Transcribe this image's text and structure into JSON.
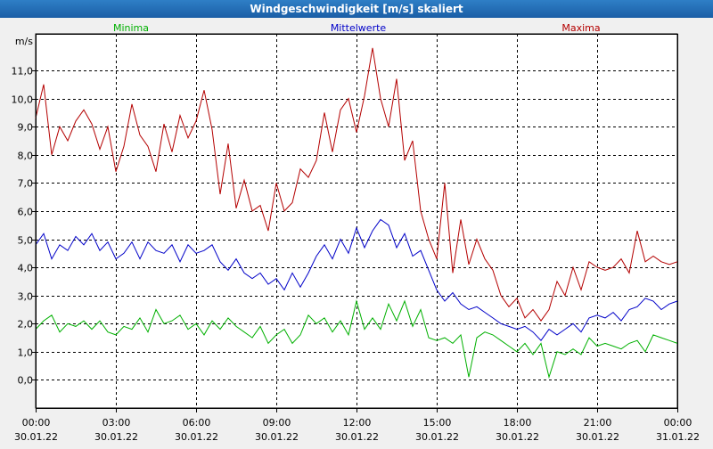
{
  "window": {
    "title": "Windgeschwindigkeit [m/s] skaliert"
  },
  "chart_data": {
    "type": "line",
    "title": "Windgeschwindigkeit [m/s] skaliert",
    "ylabel": "m/s",
    "ylim": [
      -1,
      12.3
    ],
    "xlim": [
      0,
      24
    ],
    "yticks": [
      0,
      1,
      2,
      3,
      4,
      5,
      6,
      7,
      8,
      9,
      10,
      11
    ],
    "ytick_labels": [
      "0,0",
      "1,0",
      "2,0",
      "3,0",
      "4,0",
      "5,0",
      "6,0",
      "7,0",
      "8,0",
      "9,0",
      "10,0",
      "11,0"
    ],
    "xticks": [
      {
        "x": 0,
        "time": "00:00",
        "date": "30.01.22"
      },
      {
        "x": 3,
        "time": "03:00",
        "date": "30.01.22"
      },
      {
        "x": 6,
        "time": "06:00",
        "date": "30.01.22"
      },
      {
        "x": 9,
        "time": "09:00",
        "date": "30.01.22"
      },
      {
        "x": 12,
        "time": "12:00",
        "date": "30.01.22"
      },
      {
        "x": 15,
        "time": "15:00",
        "date": "30.01.22"
      },
      {
        "x": 18,
        "time": "18:00",
        "date": "30.01.22"
      },
      {
        "x": 21,
        "time": "21:00",
        "date": "30.01.22"
      },
      {
        "x": 24,
        "time": "00:00",
        "date": "31.01.22"
      }
    ],
    "grid": true,
    "legend_position": "top",
    "series": [
      {
        "name": "Minima",
        "color": "#00b000",
        "x": [
          0,
          0.3,
          0.6,
          0.9,
          1.2,
          1.5,
          1.8,
          2.1,
          2.4,
          2.7,
          3.0,
          3.3,
          3.6,
          3.9,
          4.2,
          4.5,
          4.8,
          5.1,
          5.4,
          5.7,
          6.0,
          6.3,
          6.6,
          6.9,
          7.2,
          7.5,
          7.8,
          8.1,
          8.4,
          8.7,
          9.0,
          9.3,
          9.6,
          9.9,
          10.2,
          10.5,
          10.8,
          11.1,
          11.4,
          11.7,
          12.0,
          12.3,
          12.6,
          12.9,
          13.2,
          13.5,
          13.8,
          14.1,
          14.4,
          14.7,
          15.0,
          15.3,
          15.6,
          15.9,
          16.2,
          16.5,
          16.8,
          17.1,
          17.4,
          17.7,
          18.0,
          18.3,
          18.6,
          18.9,
          19.2,
          19.5,
          19.8,
          20.1,
          20.4,
          20.7,
          21.0,
          21.3,
          21.6,
          21.9,
          22.2,
          22.5,
          22.8,
          23.1,
          23.4,
          23.7,
          24.0
        ],
        "values": [
          1.8,
          2.1,
          2.3,
          1.7,
          2.0,
          1.9,
          2.1,
          1.8,
          2.1,
          1.7,
          1.6,
          1.9,
          1.8,
          2.2,
          1.7,
          2.5,
          2.0,
          2.1,
          2.3,
          1.8,
          2.0,
          1.6,
          2.1,
          1.8,
          2.2,
          1.9,
          1.7,
          1.5,
          1.9,
          1.3,
          1.6,
          1.8,
          1.3,
          1.6,
          2.3,
          2.0,
          2.2,
          1.7,
          2.1,
          1.6,
          2.8,
          1.8,
          2.2,
          1.8,
          2.7,
          2.1,
          2.8,
          1.9,
          2.5,
          1.5,
          1.4,
          1.5,
          1.3,
          1.6,
          0.1,
          1.5,
          1.7,
          1.6,
          1.4,
          1.2,
          1.0,
          1.3,
          0.9,
          1.3,
          0.1,
          1.0,
          0.9,
          1.1,
          0.9,
          1.5,
          1.2,
          1.3,
          1.2,
          1.1,
          1.3,
          1.4,
          1.0,
          1.6,
          1.5,
          1.4,
          1.3
        ]
      },
      {
        "name": "Mittelwerte",
        "color": "#0000c8",
        "x": [
          0,
          0.3,
          0.6,
          0.9,
          1.2,
          1.5,
          1.8,
          2.1,
          2.4,
          2.7,
          3.0,
          3.3,
          3.6,
          3.9,
          4.2,
          4.5,
          4.8,
          5.1,
          5.4,
          5.7,
          6.0,
          6.3,
          6.6,
          6.9,
          7.2,
          7.5,
          7.8,
          8.1,
          8.4,
          8.7,
          9.0,
          9.3,
          9.6,
          9.9,
          10.2,
          10.5,
          10.8,
          11.1,
          11.4,
          11.7,
          12.0,
          12.3,
          12.6,
          12.9,
          13.2,
          13.5,
          13.8,
          14.1,
          14.4,
          14.7,
          15.0,
          15.3,
          15.6,
          15.9,
          16.2,
          16.5,
          16.8,
          17.1,
          17.4,
          17.7,
          18.0,
          18.3,
          18.6,
          18.9,
          19.2,
          19.5,
          19.8,
          20.1,
          20.4,
          20.7,
          21.0,
          21.3,
          21.6,
          21.9,
          22.2,
          22.5,
          22.8,
          23.1,
          23.4,
          23.7,
          24.0
        ],
        "values": [
          4.8,
          5.2,
          4.3,
          4.8,
          4.6,
          5.1,
          4.8,
          5.2,
          4.6,
          4.9,
          4.3,
          4.5,
          4.9,
          4.3,
          4.9,
          4.6,
          4.5,
          4.8,
          4.2,
          4.8,
          4.5,
          4.6,
          4.8,
          4.2,
          3.9,
          4.3,
          3.8,
          3.6,
          3.8,
          3.4,
          3.6,
          3.2,
          3.8,
          3.3,
          3.8,
          4.4,
          4.8,
          4.3,
          5.0,
          4.5,
          5.4,
          4.7,
          5.3,
          5.7,
          5.5,
          4.7,
          5.2,
          4.4,
          4.6,
          3.9,
          3.2,
          2.8,
          3.1,
          2.7,
          2.5,
          2.6,
          2.4,
          2.2,
          2.0,
          1.9,
          1.8,
          1.9,
          1.7,
          1.4,
          1.8,
          1.6,
          1.8,
          2.0,
          1.7,
          2.2,
          2.3,
          2.2,
          2.4,
          2.1,
          2.5,
          2.6,
          2.9,
          2.8,
          2.5,
          2.7,
          2.8
        ]
      },
      {
        "name": "Maxima",
        "color": "#b40000",
        "x": [
          0,
          0.3,
          0.6,
          0.9,
          1.2,
          1.5,
          1.8,
          2.1,
          2.4,
          2.7,
          3.0,
          3.3,
          3.6,
          3.9,
          4.2,
          4.5,
          4.8,
          5.1,
          5.4,
          5.7,
          6.0,
          6.3,
          6.6,
          6.9,
          7.2,
          7.5,
          7.8,
          8.1,
          8.4,
          8.7,
          9.0,
          9.3,
          9.6,
          9.9,
          10.2,
          10.5,
          10.8,
          11.1,
          11.4,
          11.7,
          12.0,
          12.3,
          12.6,
          12.9,
          13.2,
          13.5,
          13.8,
          14.1,
          14.4,
          14.7,
          15.0,
          15.3,
          15.6,
          15.9,
          16.2,
          16.5,
          16.8,
          17.1,
          17.4,
          17.7,
          18.0,
          18.3,
          18.6,
          18.9,
          19.2,
          19.5,
          19.8,
          20.1,
          20.4,
          20.7,
          21.0,
          21.3,
          21.6,
          21.9,
          22.2,
          22.5,
          22.8,
          23.1,
          23.4,
          23.7,
          24.0
        ],
        "values": [
          9.3,
          10.5,
          8.0,
          9.0,
          8.5,
          9.2,
          9.6,
          9.1,
          8.2,
          9.0,
          7.4,
          8.3,
          9.8,
          8.7,
          8.3,
          7.4,
          9.1,
          8.1,
          9.4,
          8.6,
          9.2,
          10.3,
          8.9,
          6.6,
          8.4,
          6.1,
          7.1,
          6.0,
          6.2,
          5.3,
          7.0,
          6.0,
          6.3,
          7.5,
          7.2,
          7.8,
          9.5,
          8.1,
          9.6,
          10.0,
          8.8,
          10.1,
          11.8,
          10.0,
          9.0,
          10.7,
          7.8,
          8.5,
          6.0,
          5.0,
          4.3,
          7.0,
          3.8,
          5.7,
          4.1,
          5.0,
          4.3,
          3.9,
          3.0,
          2.6,
          2.9,
          2.2,
          2.5,
          2.1,
          2.5,
          3.5,
          3.0,
          4.0,
          3.2,
          4.2,
          4.0,
          3.9,
          4.0,
          4.3,
          3.8,
          5.3,
          4.2,
          4.4,
          4.2,
          4.1,
          4.2
        ]
      }
    ]
  }
}
